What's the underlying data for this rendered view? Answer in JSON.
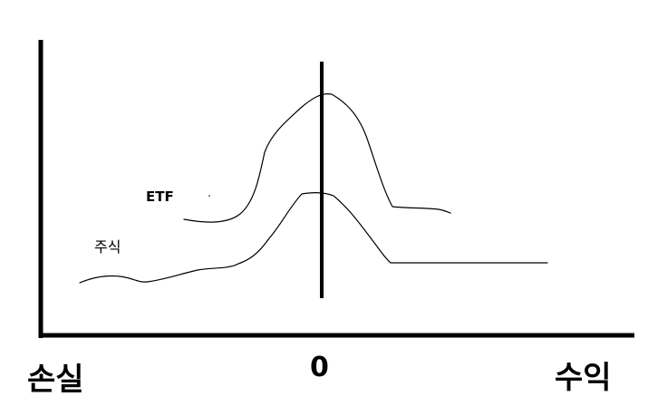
{
  "labels": {
    "loss": "손실",
    "zero": "0",
    "gain": "수익",
    "etf": "ETF",
    "stock": "주식"
  },
  "series": [
    {
      "name": "ETF"
    },
    {
      "name": "주식"
    }
  ],
  "colors": {
    "background": "#ffffff",
    "ink": "#000000"
  }
}
